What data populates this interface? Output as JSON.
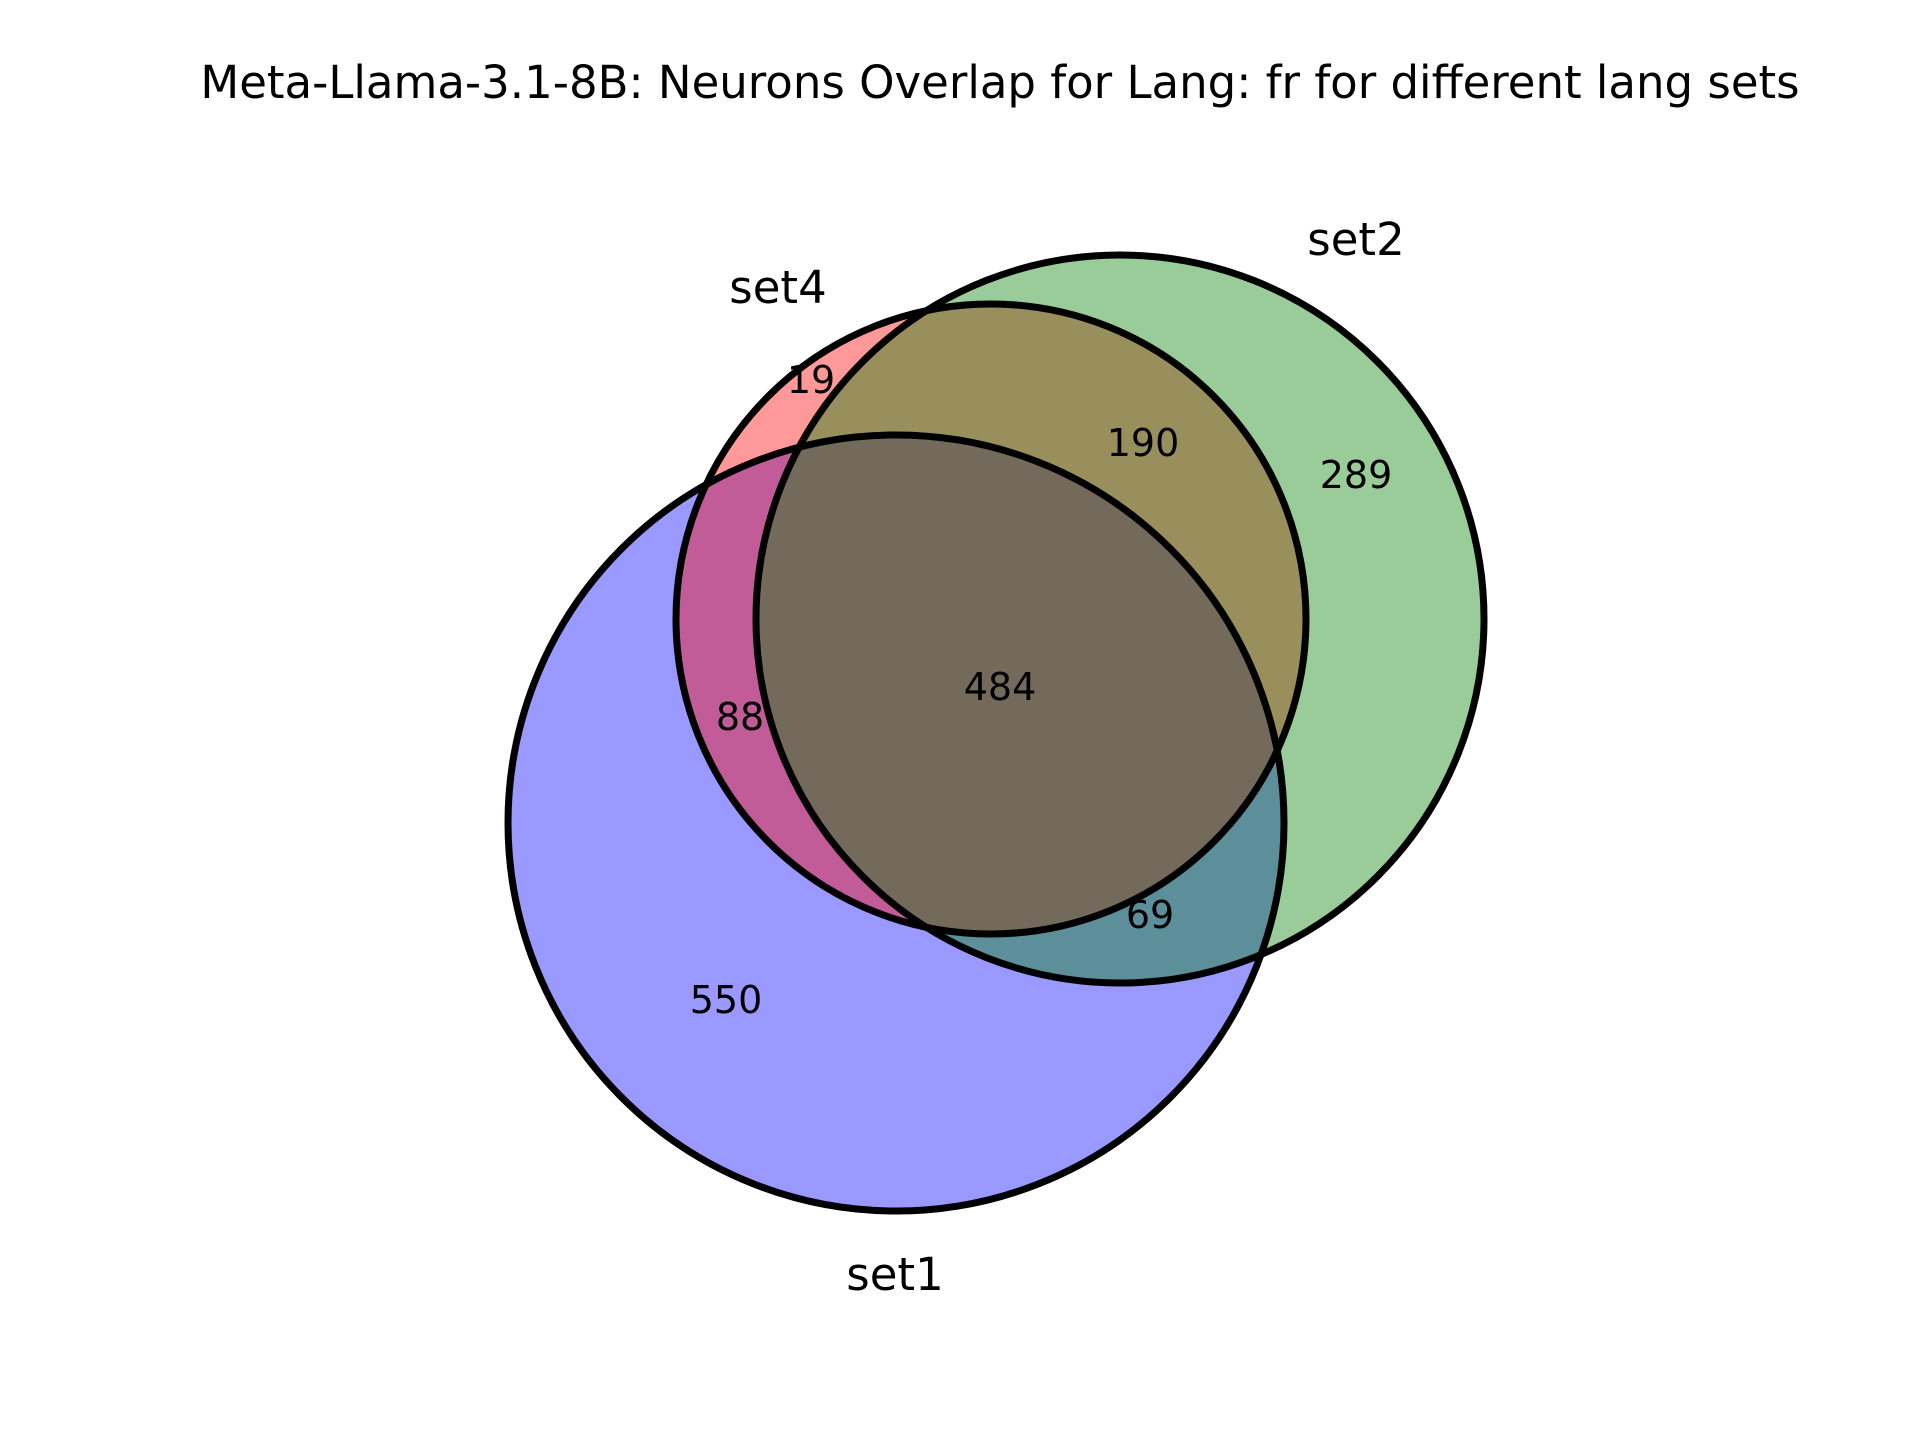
{
  "title": "Meta-Llama-3.1-8B: Neurons Overlap for Lang: fr for different lang sets",
  "sets": [
    {
      "id": "set1",
      "label": "set1",
      "color": "#0000ff"
    },
    {
      "id": "set2",
      "label": "set2",
      "color": "#008000"
    },
    {
      "id": "set4",
      "label": "set4",
      "color": "#ff0000"
    }
  ],
  "regions": {
    "only_set1": "550",
    "only_set2": "289",
    "only_set4": "19",
    "set1_set4": "88",
    "set2_set4": "190",
    "set1_set2": "69",
    "set1_set2_set4": "484"
  },
  "chart_data": {
    "type": "venn",
    "title": "Meta-Llama-3.1-8B: Neurons Overlap for Lang: fr for different lang sets",
    "sets": [
      "set1",
      "set2",
      "set4"
    ],
    "region_counts": {
      "set1_only": 550,
      "set2_only": 289,
      "set4_only": 19,
      "set1_and_set4_only": 88,
      "set2_and_set4_only": 190,
      "set1_and_set2_only": 69,
      "set1_and_set2_and_set4": 484
    }
  }
}
